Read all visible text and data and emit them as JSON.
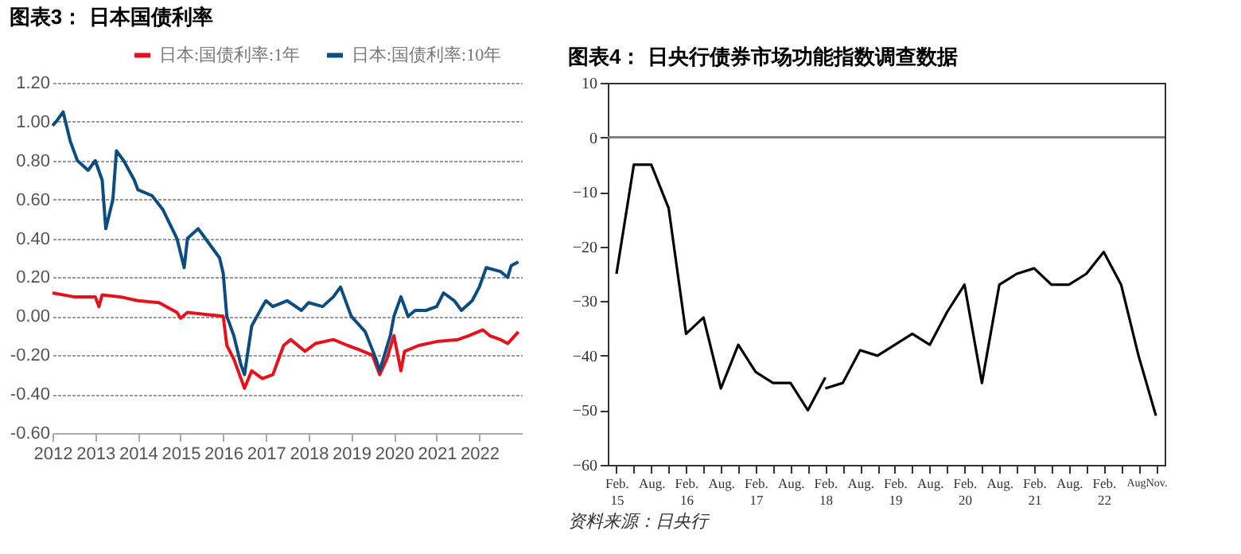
{
  "chart_data": [
    {
      "type": "line",
      "title": "图表3： 日本国债利率",
      "legend": "top",
      "grid": "y",
      "xlim": [
        "2012-01-01",
        "2022-12-31"
      ],
      "xticks": [
        "2012",
        "2013",
        "2014",
        "2015",
        "2016",
        "2017",
        "2018",
        "2019",
        "2020",
        "2021",
        "2022"
      ],
      "ylim": [
        -0.6,
        1.2
      ],
      "yticks": [
        {
          "value": -0.6,
          "label": "-0.60"
        },
        {
          "value": -0.4,
          "label": "-0.40"
        },
        {
          "value": -0.2,
          "label": "-0.20"
        },
        {
          "value": 0,
          "label": "0.00"
        },
        {
          "value": 0.2,
          "label": "0.20"
        },
        {
          "value": 0.4,
          "label": "0.40"
        },
        {
          "value": 0.6,
          "label": "0.60"
        },
        {
          "value": 0.8,
          "label": "0.80"
        },
        {
          "value": 1.0,
          "label": "1.00"
        },
        {
          "value": 1.2,
          "label": "1.20"
        }
      ],
      "series": [
        {
          "name": "日本:国债利率:1年",
          "color": "#e8101a",
          "x": [
            "2012-01",
            "2012-07",
            "2013-01",
            "2013-02",
            "2013-03",
            "2013-08",
            "2014-01",
            "2014-07",
            "2014-12",
            "2015-01",
            "2015-03",
            "2015-08",
            "2016-01",
            "2016-02",
            "2016-04",
            "2016-06",
            "2016-07",
            "2016-09",
            "2016-12",
            "2017-03",
            "2017-06",
            "2017-08",
            "2017-12",
            "2018-03",
            "2018-08",
            "2018-12",
            "2019-03",
            "2019-07",
            "2019-09",
            "2019-11",
            "2020-01",
            "2020-03",
            "2020-04",
            "2020-08",
            "2021-01",
            "2021-07",
            "2021-10",
            "2022-02",
            "2022-04",
            "2022-07",
            "2022-09",
            "2022-12"
          ],
          "values": [
            0.12,
            0.1,
            0.1,
            0.05,
            0.11,
            0.1,
            0.08,
            0.07,
            0.02,
            -0.01,
            0.02,
            0.01,
            0.0,
            -0.15,
            -0.22,
            -0.32,
            -0.37,
            -0.28,
            -0.32,
            -0.3,
            -0.15,
            -0.12,
            -0.18,
            -0.14,
            -0.12,
            -0.15,
            -0.17,
            -0.2,
            -0.3,
            -0.22,
            -0.1,
            -0.28,
            -0.18,
            -0.15,
            -0.13,
            -0.12,
            -0.1,
            -0.07,
            -0.1,
            -0.12,
            -0.14,
            -0.08
          ]
        },
        {
          "name": "日本:国债利率:10年",
          "color": "#0b4d7e",
          "x": [
            "2012-01",
            "2012-02",
            "2012-04",
            "2012-06",
            "2012-08",
            "2012-11",
            "2013-01",
            "2013-03",
            "2013-04",
            "2013-06",
            "2013-07",
            "2013-09",
            "2013-12",
            "2014-01",
            "2014-05",
            "2014-08",
            "2014-12",
            "2015-02",
            "2015-03",
            "2015-06",
            "2015-08",
            "2015-12",
            "2016-01",
            "2016-02",
            "2016-04",
            "2016-06",
            "2016-07",
            "2016-09",
            "2016-12",
            "2017-01",
            "2017-03",
            "2017-07",
            "2017-11",
            "2018-01",
            "2018-05",
            "2018-08",
            "2018-10",
            "2019-01",
            "2019-05",
            "2019-08",
            "2019-09",
            "2019-12",
            "2020-01",
            "2020-03",
            "2020-05",
            "2020-07",
            "2020-10",
            "2021-01",
            "2021-03",
            "2021-06",
            "2021-08",
            "2021-11",
            "2022-01",
            "2022-03",
            "2022-07",
            "2022-09",
            "2022-10",
            "2022-12"
          ],
          "values": [
            0.98,
            1.0,
            1.05,
            0.9,
            0.8,
            0.75,
            0.8,
            0.7,
            0.45,
            0.6,
            0.85,
            0.8,
            0.7,
            0.65,
            0.62,
            0.55,
            0.4,
            0.25,
            0.4,
            0.45,
            0.4,
            0.3,
            0.22,
            0.0,
            -0.1,
            -0.25,
            -0.3,
            -0.05,
            0.05,
            0.08,
            0.05,
            0.08,
            0.03,
            0.07,
            0.05,
            0.1,
            0.15,
            0.0,
            -0.08,
            -0.22,
            -0.28,
            -0.1,
            0.0,
            0.1,
            0.0,
            0.03,
            0.03,
            0.05,
            0.12,
            0.08,
            0.03,
            0.08,
            0.15,
            0.25,
            0.23,
            0.2,
            0.26,
            0.28
          ]
        }
      ]
    },
    {
      "type": "line",
      "title": "图表4： 日央行债券市场功能指数调查数据",
      "categories": [
        "Feb. 15",
        null,
        "Aug.",
        null,
        "Feb. 16",
        null,
        "Aug.",
        null,
        "Feb. 17",
        null,
        "Aug.",
        null,
        "Feb. 18",
        null,
        "Aug.",
        null,
        "Feb. 19",
        null,
        "Aug.",
        null,
        "Feb. 20",
        null,
        "Aug.",
        null,
        "Feb. 21",
        null,
        "Aug.",
        null,
        "Feb. 22",
        null,
        "Aug.",
        "Nov."
      ],
      "ylim": [
        -60,
        10
      ],
      "yticks": [
        -60,
        -50,
        -40,
        -30,
        -20,
        -10,
        0,
        10
      ],
      "ref_lines": [
        {
          "axis": "y",
          "value": 0,
          "color": "#808080"
        }
      ],
      "series": [
        {
          "color": "#000000",
          "values": [
            -25,
            -5,
            -5,
            -13,
            -36,
            -33,
            -46,
            -38,
            -43,
            -45,
            -45,
            -50,
            -44,
            null,
            null,
            null,
            null,
            null,
            null,
            null,
            null,
            null,
            null,
            null,
            null,
            null,
            null,
            null,
            null,
            null,
            null,
            null
          ]
        },
        {
          "color": "#000000",
          "values": [
            null,
            null,
            null,
            null,
            null,
            null,
            null,
            null,
            null,
            null,
            null,
            null,
            -46,
            -45,
            -39,
            -40,
            -38,
            -36,
            -38,
            -32,
            -27,
            -45,
            -27,
            -25,
            -24,
            -27,
            -27,
            -25,
            -21,
            -27,
            -40,
            -51
          ]
        }
      ],
      "annotations": [
        "资料来源：日央行"
      ]
    }
  ]
}
